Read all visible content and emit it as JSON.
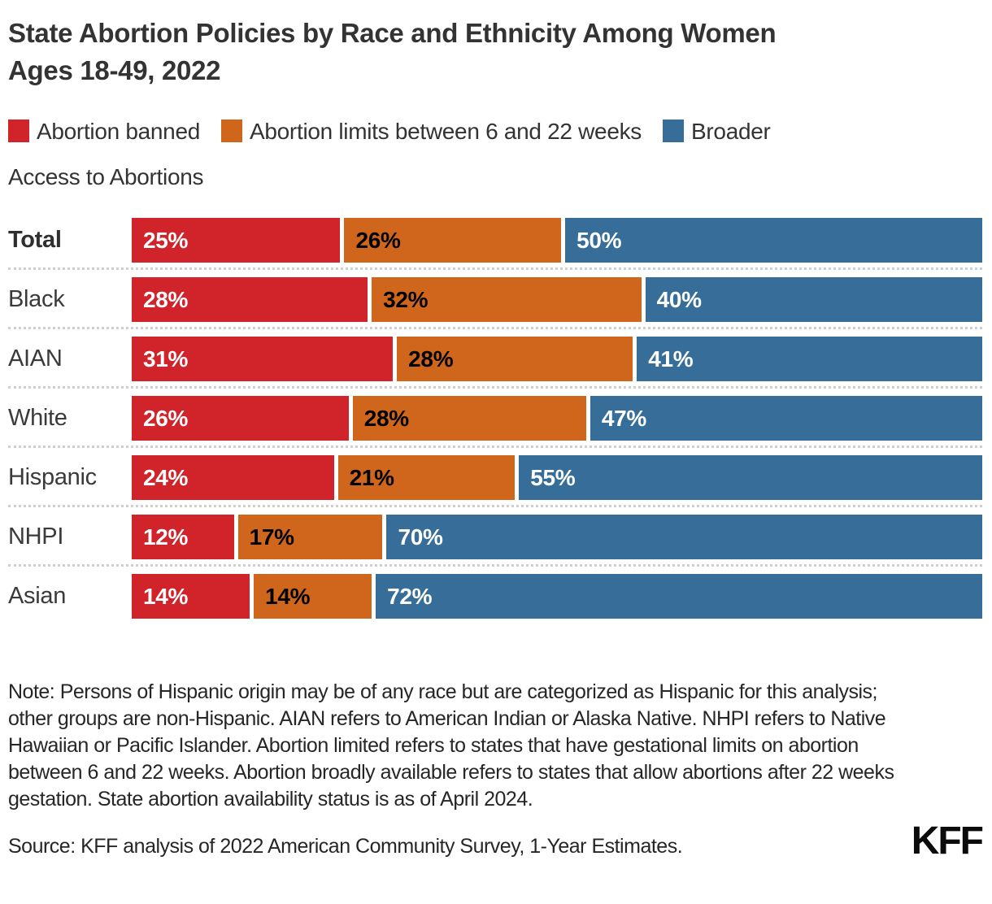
{
  "title": {
    "line1": "State Abortion Policies by Race and Ethnicity Among Women",
    "line2": "Ages 18-49, 2022"
  },
  "legend": {
    "items": [
      {
        "label": "Abortion banned",
        "color": "#d1232a"
      },
      {
        "label": "Abortion limits between 6 and 22 weeks",
        "color": "#d0661b"
      },
      {
        "label": "Broader Access to Abortions",
        "color": "#376e99",
        "break_after": "Broader"
      }
    ]
  },
  "chart_data": {
    "type": "bar",
    "orientation": "horizontal",
    "stacked": true,
    "grid": false,
    "legend_position": "top",
    "value_suffix": "%",
    "categories": [
      "Total",
      "Black",
      "AIAN",
      "White",
      "Hispanic",
      "NHPI",
      "Asian"
    ],
    "series": [
      {
        "name": "Abortion banned",
        "color": "#d1232a",
        "label_color": "#ffffff",
        "values": [
          25,
          28,
          31,
          26,
          24,
          12,
          14
        ]
      },
      {
        "name": "Abortion limits between 6 and 22 weeks",
        "color": "#d0661b",
        "label_color": "#000000",
        "values": [
          26,
          32,
          28,
          28,
          21,
          17,
          14
        ]
      },
      {
        "name": "Broader Access to Abortions",
        "color": "#376e99",
        "label_color": "#ffffff",
        "values": [
          50,
          40,
          41,
          47,
          55,
          70,
          72
        ]
      }
    ]
  },
  "note": "Note: Persons of Hispanic origin may be of any race but are categorized as Hispanic for this analysis; other groups are non-Hispanic. AIAN refers to American Indian or Alaska Native. NHPI refers to Native Hawaiian or Pacific Islander. Abortion limited refers to states that have gestational limits on abortion between 6 and 22 weeks. Abortion broadly available refers to states that allow abortions after 22 weeks gestation. State abortion availability status is as of April 2024.",
  "source": "Source: KFF analysis of 2022 American Community Survey, 1-Year Estimates.",
  "logo": "KFF"
}
